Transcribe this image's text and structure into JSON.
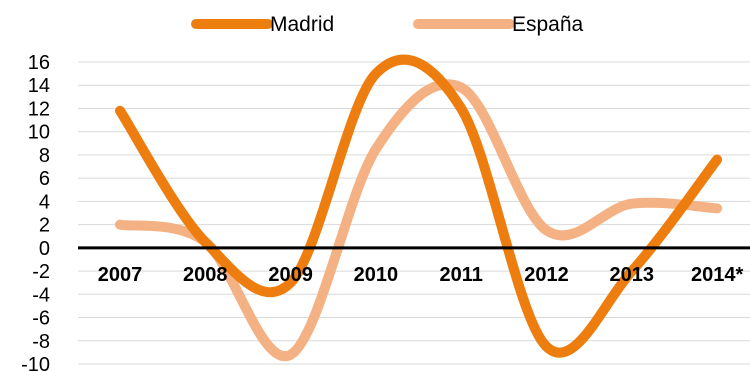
{
  "chart_data": {
    "type": "line",
    "title": "",
    "xlabel": "",
    "ylabel": "",
    "categories": [
      "2007",
      "2008",
      "2009",
      "2010",
      "2011",
      "2012",
      "2013",
      "2014*"
    ],
    "ylim": [
      -10,
      16
    ],
    "yticks": [
      16,
      14,
      12,
      10,
      8,
      6,
      4,
      2,
      0,
      -2,
      -4,
      -6,
      -8,
      -10
    ],
    "grid": true,
    "legend": "top",
    "series": [
      {
        "name": "Madrid",
        "color": "#ED7D0E",
        "values": [
          11.8,
          0.5,
          -3.0,
          15.0,
          12.0,
          -8.5,
          -2.0,
          7.6
        ]
      },
      {
        "name": "España",
        "color": "#F4B183",
        "values": [
          2.0,
          0.5,
          -9.2,
          8.5,
          13.8,
          1.5,
          3.8,
          3.4
        ]
      }
    ]
  }
}
